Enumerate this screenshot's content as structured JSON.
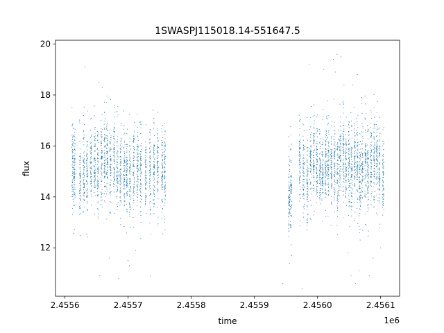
{
  "chart_data": {
    "type": "scatter",
    "title": "1SWASPJ115018.14-551647.5",
    "xlabel": "time",
    "ylabel": "flux",
    "x_offset_label": "1e6",
    "xlim": [
      2455585,
      2456130
    ],
    "ylim": [
      10.1,
      20.15
    ],
    "x_ticks": [
      2455600,
      2455700,
      2455800,
      2455900,
      2456000,
      2456100
    ],
    "x_tick_labels": [
      "2.4556",
      "2.4557",
      "2.4558",
      "2.4559",
      "2.4560",
      "2.4561"
    ],
    "y_ticks": [
      12,
      14,
      16,
      18,
      20
    ],
    "y_tick_labels": [
      "12",
      "14",
      "16",
      "18",
      "20"
    ],
    "grid": false,
    "marker_color": "#1f77b4",
    "observing_nights": [
      [
        2455612,
        15.3
      ],
      [
        2455615,
        15.1
      ],
      [
        2455624,
        14.7
      ],
      [
        2455630,
        15.0
      ],
      [
        2455635,
        14.9
      ],
      [
        2455641,
        15.2
      ],
      [
        2455647,
        15.3
      ],
      [
        2455652,
        14.9
      ],
      [
        2455658,
        15.4
      ],
      [
        2455663,
        15.6
      ],
      [
        2455667,
        15.5
      ],
      [
        2455672,
        15.3
      ],
      [
        2455678,
        15.6
      ],
      [
        2455683,
        15.1
      ],
      [
        2455688,
        15.2
      ],
      [
        2455694,
        15.0
      ],
      [
        2455698,
        14.8
      ],
      [
        2455703,
        14.7
      ],
      [
        2455709,
        15.2
      ],
      [
        2455715,
        15.1
      ],
      [
        2455720,
        14.8
      ],
      [
        2455728,
        14.9
      ],
      [
        2455735,
        15.0
      ],
      [
        2455741,
        15.1
      ],
      [
        2455747,
        15.3
      ],
      [
        2455754,
        15.0
      ],
      [
        2455758,
        15.2
      ],
      [
        2455955,
        13.9
      ],
      [
        2455958,
        14.2
      ],
      [
        2455972,
        15.3
      ],
      [
        2455978,
        14.8
      ],
      [
        2455984,
        14.6
      ],
      [
        2455989,
        15.5
      ],
      [
        2455994,
        15.6
      ],
      [
        2455999,
        15.4
      ],
      [
        2456004,
        15.2
      ],
      [
        2456008,
        15.0
      ],
      [
        2456013,
        15.5
      ],
      [
        2456017,
        15.4
      ],
      [
        2456022,
        15.1
      ],
      [
        2456027,
        15.3
      ],
      [
        2456032,
        14.9
      ],
      [
        2456036,
        15.5
      ],
      [
        2456041,
        15.6
      ],
      [
        2456045,
        15.2
      ],
      [
        2456050,
        15.3
      ],
      [
        2456054,
        15.0
      ],
      [
        2456059,
        15.5
      ],
      [
        2456063,
        15.4
      ],
      [
        2456067,
        14.8
      ],
      [
        2456071,
        15.2
      ],
      [
        2456076,
        15.4
      ],
      [
        2456080,
        14.9
      ],
      [
        2456085,
        15.3
      ],
      [
        2456090,
        15.5
      ],
      [
        2456094,
        15.7
      ],
      [
        2456098,
        15.1
      ],
      [
        2456104,
        14.9
      ]
    ],
    "outliers": [
      [
        2455631,
        19.1
      ],
      [
        2455654,
        18.5
      ],
      [
        2455659,
        18.3
      ],
      [
        2455666,
        17.7
      ],
      [
        2455700,
        11.5
      ],
      [
        2455702,
        11.3
      ],
      [
        2455712,
        11.9
      ],
      [
        2455735,
        10.9
      ],
      [
        2455655,
        10.9
      ],
      [
        2455685,
        10.8
      ],
      [
        2455670,
        11.6
      ],
      [
        2455945,
        10.6
      ],
      [
        2455987,
        19.2
      ],
      [
        2456010,
        19.0
      ],
      [
        2456025,
        19.4
      ],
      [
        2456031,
        19.6
      ],
      [
        2456037,
        19.5
      ],
      [
        2456028,
        18.9
      ],
      [
        2456063,
        18.8
      ],
      [
        2456056,
        18.4
      ],
      [
        2456042,
        18.4
      ],
      [
        2456070,
        17.9
      ],
      [
        2455976,
        10.4
      ],
      [
        2456048,
        11.8
      ],
      [
        2456053,
        10.9
      ],
      [
        2456060,
        10.6
      ],
      [
        2456066,
        11.1
      ],
      [
        2456082,
        10.9
      ],
      [
        2456088,
        11.6
      ],
      [
        2456100,
        12.0
      ]
    ]
  }
}
